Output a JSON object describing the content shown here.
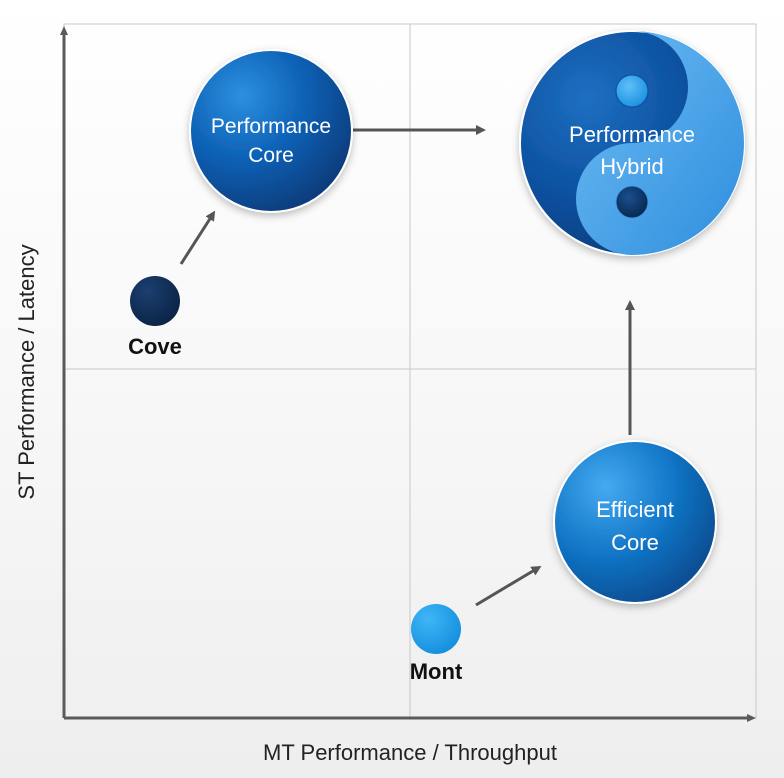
{
  "diagram": {
    "axes": {
      "x_label": "MT Performance / Throughput",
      "y_label": "ST Performance / Latency"
    },
    "nodes": {
      "performance_core": {
        "line1": "Performance",
        "line2": "Core",
        "color": "#0a5bb0"
      },
      "performance_hybrid": {
        "line1": "Performance",
        "line2": "Hybrid",
        "color_dark": "#0b4e9c",
        "color_light": "#49a6ea"
      },
      "efficient_core": {
        "line1": "Efficient",
        "line2": "Core",
        "color": "#1576c7"
      },
      "cove": {
        "label": "Cove",
        "color": "#0f2c55"
      },
      "mont": {
        "label": "Mont",
        "color": "#20a4f0"
      }
    },
    "colors": {
      "axis": "#5a5a5a",
      "grid": "#c8c8c8",
      "arrow": "#555555"
    }
  }
}
